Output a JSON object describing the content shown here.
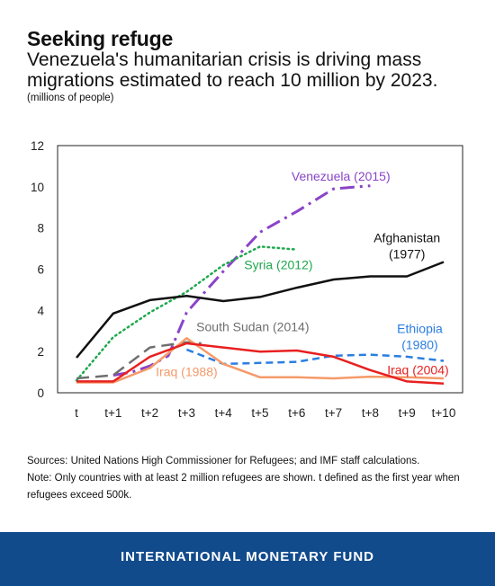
{
  "header": {
    "title": "Seeking refuge",
    "subtitle": "Venezuela's humanitarian crisis is driving mass migrations estimated to reach 10 million by 2023.",
    "unit": "(millions of people)"
  },
  "chart_data": {
    "type": "line",
    "categories": [
      "t",
      "t+1",
      "t+2",
      "t+3",
      "t+4",
      "t+5",
      "t+6",
      "t+7",
      "t+8",
      "t+9",
      "t+10"
    ],
    "ylim": [
      0,
      12
    ],
    "yticks": [
      0,
      2,
      4,
      6,
      8,
      10,
      12
    ],
    "grid": false,
    "series": [
      {
        "name": "Venezuela (2015)",
        "color": "#8a44c8",
        "style": "dashdot",
        "width": 3,
        "x": [
          1.0,
          1.5,
          2.0,
          2.5,
          3.0,
          4.0,
          5.0,
          6.0,
          7.0,
          8.0
        ],
        "values": [
          0.85,
          1.0,
          1.3,
          1.8,
          3.9,
          5.9,
          7.8,
          8.8,
          9.9,
          10.05
        ],
        "label_lines": [
          "Venezuela (2015)"
        ],
        "label_x": 7.2,
        "label_y": 10.3
      },
      {
        "name": "Syria (2012)",
        "color": "#1fa84e",
        "style": "dotted",
        "width": 2.5,
        "x": [
          0,
          1,
          2,
          3,
          4,
          5,
          6
        ],
        "values": [
          0.6,
          2.7,
          3.9,
          4.9,
          6.2,
          7.1,
          6.95
        ],
        "label_lines": [
          "Syria (2012)"
        ],
        "label_x": 5.5,
        "label_y": 6.0
      },
      {
        "name": "Afghanistan (1977)",
        "color": "#111111",
        "style": "solid",
        "width": 2.5,
        "x": [
          0,
          1,
          2,
          3,
          4,
          5,
          6,
          7,
          8,
          9,
          10
        ],
        "values": [
          1.7,
          3.85,
          4.5,
          4.7,
          4.45,
          4.65,
          5.1,
          5.5,
          5.65,
          5.65,
          6.35
        ],
        "label_lines": [
          "Afghanistan",
          "(1977)"
        ],
        "label_x": 9.0,
        "label_y": 7.3
      },
      {
        "name": "South Sudan (2014)",
        "color": "#6e6e6e",
        "style": "longdash",
        "width": 2.5,
        "x": [
          0,
          1,
          2,
          3,
          3.4
        ],
        "values": [
          0.7,
          0.85,
          2.2,
          2.45,
          2.4
        ],
        "label_lines": [
          "South Sudan (2014)"
        ],
        "label_x": 4.8,
        "label_y": 3.0
      },
      {
        "name": "Ethiopia (1980)",
        "color": "#2a7ee0",
        "style": "dashed",
        "width": 2.5,
        "x": [
          3,
          4,
          5,
          6,
          7,
          8,
          9,
          10
        ],
        "values": [
          2.1,
          1.4,
          1.45,
          1.5,
          1.8,
          1.85,
          1.75,
          1.55
        ],
        "label_lines": [
          "Ethiopia",
          "(1980)"
        ],
        "label_x": 9.35,
        "label_y": 2.9
      },
      {
        "name": "Iraq (1988)",
        "color": "#f59a6a",
        "style": "solid",
        "width": 2.5,
        "x": [
          0,
          1,
          2,
          3,
          4,
          5,
          6,
          7,
          8,
          9,
          10
        ],
        "values": [
          0.5,
          0.5,
          1.2,
          2.65,
          1.4,
          0.75,
          0.75,
          0.7,
          0.78,
          0.75,
          0.7
        ],
        "label_lines": [
          "Iraq (1988)"
        ],
        "label_x": 3.0,
        "label_y": 0.8
      },
      {
        "name": "Iraq (2004)",
        "color": "#e82020",
        "style": "solid",
        "width": 2.5,
        "x": [
          0,
          1,
          2,
          3,
          4,
          5,
          6,
          7,
          8,
          9,
          10
        ],
        "values": [
          0.55,
          0.55,
          1.75,
          2.4,
          2.2,
          2.0,
          2.05,
          1.75,
          1.1,
          0.55,
          0.45
        ],
        "label_lines": [
          "Iraq (2004)"
        ],
        "label_x": 9.3,
        "label_y": 0.9
      }
    ]
  },
  "notes": {
    "sources": "Sources: United Nations High Commissioner for Refugees; and IMF staff calculations.",
    "note": "Note: Only countries with at least 2 million refugees are shown. t defined as the first year when refugees exceed 500k."
  },
  "footer": {
    "org": "INTERNATIONAL MONETARY FUND"
  }
}
